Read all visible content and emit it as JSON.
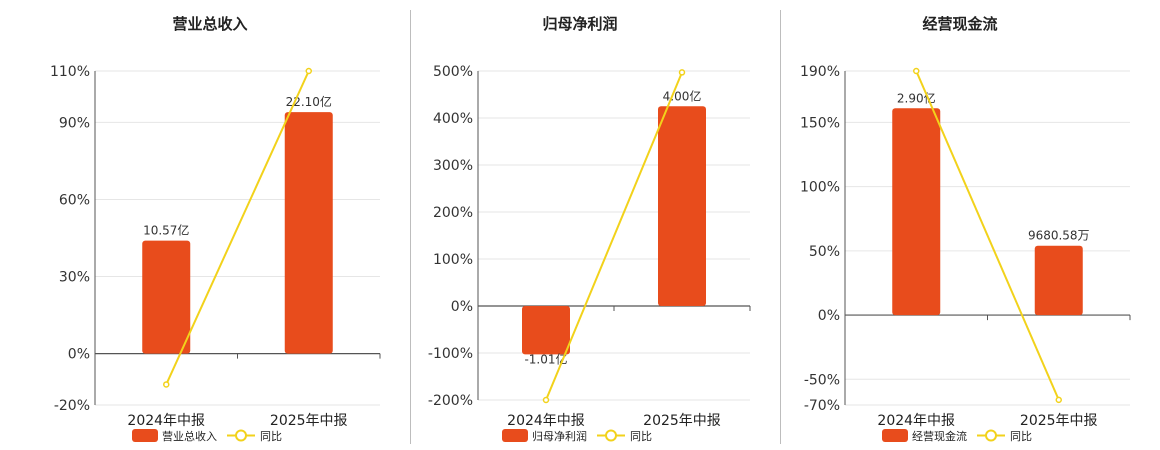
{
  "colors": {
    "bar": "#e84c1c",
    "line": "#f2d21b",
    "axis": "#555555",
    "grid": "#e6e6e6",
    "text": "#333333"
  },
  "chart_data": [
    {
      "type": "bar",
      "title": "营业总收入",
      "categories": [
        "2024年中报",
        "2025年中报"
      ],
      "values": [
        44.0,
        94.0
      ],
      "labels": [
        "10.57亿",
        "22.10亿"
      ],
      "line": [
        -12.0,
        110.0
      ],
      "yticks": [
        110,
        90,
        60,
        30,
        0,
        -20
      ],
      "ylim": [
        -20,
        110
      ],
      "legend": [
        "营业总收入",
        "同比"
      ],
      "legend_position": "bottom"
    },
    {
      "type": "bar",
      "title": "归母净利润",
      "categories": [
        "2024年中报",
        "2025年中报"
      ],
      "values": [
        -103.0,
        425.0
      ],
      "labels": [
        "-1.01亿",
        "4.00亿"
      ],
      "line": [
        -200.0,
        497.0
      ],
      "yticks": [
        500,
        400,
        300,
        200,
        100,
        0,
        -100,
        -200
      ],
      "ylim": [
        -200,
        500
      ],
      "legend": [
        "归母净利润",
        "同比"
      ],
      "legend_position": "bottom"
    },
    {
      "type": "bar",
      "title": "经营现金流",
      "categories": [
        "2024年中报",
        "2025年中报"
      ],
      "values": [
        161.0,
        54.0
      ],
      "labels": [
        "2.90亿",
        "9680.58万"
      ],
      "line": [
        190.0,
        -66.0
      ],
      "yticks": [
        190,
        150,
        100,
        50,
        0,
        -50,
        -70
      ],
      "ylim": [
        -70,
        190
      ],
      "legend": [
        "经营现金流",
        "同比"
      ],
      "legend_position": "bottom"
    }
  ]
}
